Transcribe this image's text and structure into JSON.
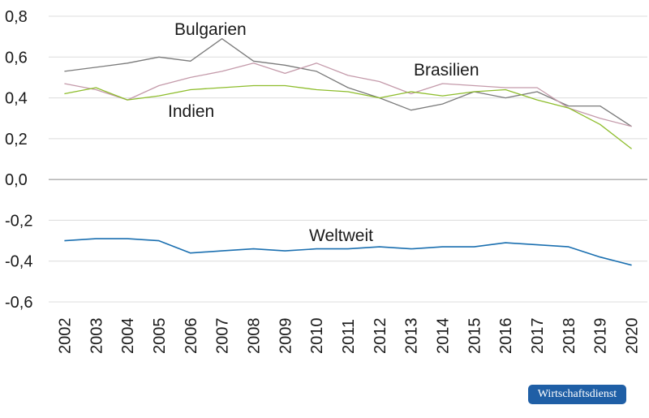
{
  "chart_data": {
    "type": "line",
    "title": "",
    "xlabel": "",
    "ylabel": "",
    "x": [
      "2002",
      "2003",
      "2004",
      "2005",
      "2006",
      "2007",
      "2008",
      "2009",
      "2010",
      "2011",
      "2012",
      "2013",
      "2014",
      "2015",
      "2016",
      "2017",
      "2018",
      "2019",
      "2020"
    ],
    "ylim": [
      -0.6,
      0.8
    ],
    "yticks": [
      "0,8",
      "0,6",
      "0,4",
      "0,2",
      "0,0",
      "-0,2",
      "-0,4",
      "-0,6"
    ],
    "grid": true,
    "series": [
      {
        "name": "Bulgarien",
        "color": "#7a7a7a",
        "values": [
          0.53,
          0.55,
          0.57,
          0.6,
          0.58,
          0.69,
          0.58,
          0.56,
          0.53,
          0.45,
          0.4,
          0.34,
          0.37,
          0.43,
          0.4,
          0.43,
          0.36,
          0.36,
          0.26
        ]
      },
      {
        "name": "Brasilien",
        "color": "#c49aaa",
        "values": [
          0.47,
          0.44,
          0.39,
          0.46,
          0.5,
          0.53,
          0.57,
          0.52,
          0.57,
          0.51,
          0.48,
          0.42,
          0.47,
          0.46,
          0.45,
          0.45,
          0.35,
          0.3,
          0.26
        ]
      },
      {
        "name": "Indien",
        "color": "#8ebd2c",
        "values": [
          0.42,
          0.45,
          0.39,
          0.41,
          0.44,
          0.45,
          0.46,
          0.46,
          0.44,
          0.43,
          0.4,
          0.43,
          0.41,
          0.43,
          0.44,
          0.39,
          0.35,
          0.27,
          0.15
        ]
      },
      {
        "name": "Weltweit",
        "color": "#1a6fb0",
        "values": [
          -0.3,
          -0.29,
          -0.29,
          -0.3,
          -0.36,
          -0.35,
          -0.34,
          -0.35,
          -0.34,
          -0.34,
          -0.33,
          -0.34,
          -0.33,
          -0.33,
          -0.31,
          -0.32,
          -0.33,
          -0.38,
          -0.42
        ]
      }
    ],
    "annotations": [
      "Bulgarien",
      "Brasilien",
      "Indien",
      "Weltweit"
    ]
  },
  "badge": {
    "text": "Wirtschaftsdienst",
    "color": "#1f5fa6"
  }
}
